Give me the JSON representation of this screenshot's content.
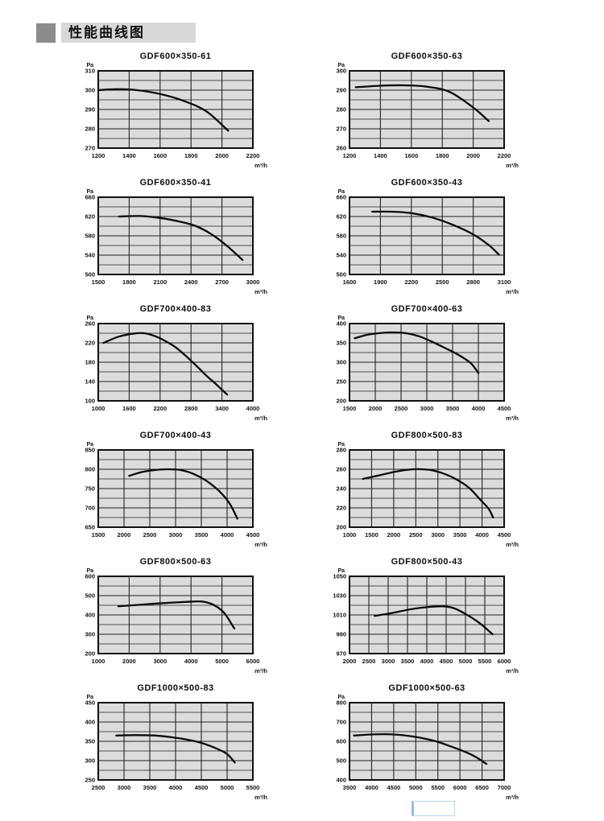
{
  "header": {
    "title": "性能曲线图"
  },
  "x_unit": "m³/h",
  "y_unit": "Pa",
  "colors": {
    "plot_background": "#dcdcdc",
    "gridline": "#222222",
    "border": "#111111",
    "curve": "#0a0a0a",
    "banner": "#d8d8d8",
    "bullet": "#8c8c8c"
  },
  "chart_data": [
    {
      "type": "line",
      "title": "GDF600×350-61",
      "y_unit": "Pa",
      "x_unit": "m³/h",
      "grid": true,
      "legend": false,
      "x_ticks": [
        1200,
        1400,
        1600,
        1800,
        2000,
        2200
      ],
      "y_ticks": [
        270,
        280,
        290,
        300,
        310
      ],
      "x_range": [
        1200,
        2200
      ],
      "y_range": [
        270,
        310
      ],
      "points": [
        [
          1200,
          300
        ],
        [
          1320,
          300.5
        ],
        [
          1450,
          300
        ],
        [
          1600,
          298
        ],
        [
          1750,
          294.5
        ],
        [
          1900,
          289
        ],
        [
          2040,
          279
        ]
      ]
    },
    {
      "type": "line",
      "title": "GDF600×350-63",
      "y_unit": "Pa",
      "x_unit": "m³/h",
      "grid": true,
      "legend": false,
      "x_ticks": [
        1200,
        1400,
        1600,
        1800,
        2000,
        2200
      ],
      "y_ticks": [
        260,
        270,
        280,
        290,
        300
      ],
      "x_range": [
        1200,
        2200
      ],
      "y_range": [
        260,
        300
      ],
      "points": [
        [
          1240,
          291.5
        ],
        [
          1400,
          292.3
        ],
        [
          1550,
          292.5
        ],
        [
          1700,
          291.8
        ],
        [
          1850,
          289
        ],
        [
          2000,
          281
        ],
        [
          2100,
          274
        ]
      ]
    },
    {
      "type": "line",
      "title": "GDF600×350-41",
      "y_unit": "Pa",
      "x_unit": "m³/h",
      "grid": true,
      "legend": false,
      "x_ticks": [
        1500,
        1800,
        2100,
        2400,
        2700,
        3000
      ],
      "y_ticks": [
        500,
        540,
        580,
        620,
        660
      ],
      "x_range": [
        1500,
        3000
      ],
      "y_range": [
        500,
        660
      ],
      "points": [
        [
          1700,
          620
        ],
        [
          1900,
          621
        ],
        [
          2100,
          617
        ],
        [
          2300,
          609
        ],
        [
          2450,
          600
        ],
        [
          2600,
          583
        ],
        [
          2750,
          559
        ],
        [
          2900,
          530
        ]
      ]
    },
    {
      "type": "line",
      "title": "GDF600×350-43",
      "y_unit": "Pa",
      "x_unit": "m³/h",
      "grid": true,
      "legend": false,
      "x_ticks": [
        1600,
        1900,
        2200,
        2500,
        2800,
        3100
      ],
      "y_ticks": [
        500,
        540,
        580,
        620,
        660
      ],
      "x_range": [
        1600,
        3100
      ],
      "y_range": [
        500,
        660
      ],
      "points": [
        [
          1820,
          630
        ],
        [
          2000,
          630
        ],
        [
          2200,
          627
        ],
        [
          2400,
          618
        ],
        [
          2600,
          603
        ],
        [
          2800,
          583
        ],
        [
          2950,
          561
        ],
        [
          3050,
          541
        ]
      ]
    },
    {
      "type": "line",
      "title": "GDF700×400-83",
      "y_unit": "Pa",
      "x_unit": "m³/h",
      "grid": true,
      "legend": false,
      "x_ticks": [
        1000,
        1600,
        2200,
        2800,
        3400,
        4000
      ],
      "y_ticks": [
        100,
        140,
        180,
        220,
        260
      ],
      "x_range": [
        1000,
        4000
      ],
      "y_range": [
        100,
        260
      ],
      "points": [
        [
          1100,
          220
        ],
        [
          1400,
          233
        ],
        [
          1700,
          239.5
        ],
        [
          1900,
          240
        ],
        [
          2100,
          234
        ],
        [
          2300,
          224
        ],
        [
          2500,
          211
        ],
        [
          2700,
          193
        ],
        [
          2900,
          173
        ],
        [
          3100,
          152
        ],
        [
          3300,
          133
        ],
        [
          3500,
          113
        ]
      ]
    },
    {
      "type": "line",
      "title": "GDF700×400-63",
      "y_unit": "Pa",
      "x_unit": "m³/h",
      "grid": true,
      "legend": false,
      "x_ticks": [
        1500,
        2000,
        2500,
        3000,
        3500,
        4000,
        4500
      ],
      "y_ticks": [
        200,
        250,
        300,
        350,
        400
      ],
      "x_range": [
        1500,
        4500
      ],
      "y_range": [
        200,
        400
      ],
      "points": [
        [
          1600,
          362
        ],
        [
          1850,
          371
        ],
        [
          2100,
          375.5
        ],
        [
          2350,
          377
        ],
        [
          2600,
          375
        ],
        [
          2850,
          367
        ],
        [
          3100,
          353
        ],
        [
          3350,
          337
        ],
        [
          3600,
          320
        ],
        [
          3850,
          298
        ],
        [
          4000,
          272
        ]
      ]
    },
    {
      "type": "line",
      "title": "GDF700×400-43",
      "y_unit": "Pa",
      "x_unit": "m³/h",
      "grid": true,
      "legend": false,
      "x_ticks": [
        1500,
        2000,
        2500,
        3000,
        3500,
        4000,
        4500
      ],
      "y_ticks": [
        650,
        700,
        750,
        800,
        850
      ],
      "x_range": [
        1500,
        4500
      ],
      "y_range": [
        650,
        850
      ],
      "points": [
        [
          2100,
          783
        ],
        [
          2350,
          793
        ],
        [
          2600,
          798
        ],
        [
          2850,
          800
        ],
        [
          3100,
          798
        ],
        [
          3350,
          788
        ],
        [
          3600,
          770
        ],
        [
          3850,
          743
        ],
        [
          4050,
          711
        ],
        [
          4200,
          672
        ]
      ]
    },
    {
      "type": "line",
      "title": "GDF800×500-83",
      "y_unit": "Pa",
      "x_unit": "m³/h",
      "grid": true,
      "legend": false,
      "x_ticks": [
        1000,
        1500,
        2000,
        2500,
        3000,
        3500,
        4000,
        4500
      ],
      "y_ticks": [
        200,
        220,
        240,
        260,
        280
      ],
      "x_range": [
        1000,
        4500
      ],
      "y_range": [
        200,
        280
      ],
      "points": [
        [
          1300,
          250
        ],
        [
          1700,
          254
        ],
        [
          2100,
          258
        ],
        [
          2450,
          260
        ],
        [
          2800,
          259.5
        ],
        [
          3100,
          256
        ],
        [
          3400,
          250
        ],
        [
          3700,
          241
        ],
        [
          3950,
          229
        ],
        [
          4150,
          219
        ],
        [
          4250,
          210
        ]
      ]
    },
    {
      "type": "line",
      "title": "GDF800×500-63",
      "y_unit": "Pa",
      "x_unit": "m³/h",
      "grid": true,
      "legend": false,
      "x_ticks": [
        1000,
        2000,
        3000,
        4000,
        5000,
        6000
      ],
      "y_ticks": [
        200,
        300,
        400,
        500,
        600
      ],
      "x_range": [
        1000,
        6000
      ],
      "y_range": [
        200,
        600
      ],
      "points": [
        [
          1650,
          445
        ],
        [
          2200,
          451
        ],
        [
          2800,
          458
        ],
        [
          3400,
          464
        ],
        [
          3900,
          468
        ],
        [
          4300,
          470
        ],
        [
          4600,
          461
        ],
        [
          4850,
          441
        ],
        [
          5100,
          405
        ],
        [
          5400,
          330
        ]
      ]
    },
    {
      "type": "line",
      "title": "GDF800×500-43",
      "y_unit": "Pa",
      "x_unit": "m³/h",
      "grid": true,
      "legend": false,
      "x_ticks": [
        2000,
        2500,
        3000,
        3500,
        4000,
        4500,
        5000,
        5500,
        6000
      ],
      "y_ticks": [
        970,
        990,
        1010,
        1030,
        1050
      ],
      "x_range": [
        2000,
        6000
      ],
      "y_range": [
        970,
        1050
      ],
      "points": [
        [
          2650,
          1009
        ],
        [
          3100,
          1012
        ],
        [
          3600,
          1016
        ],
        [
          4000,
          1018
        ],
        [
          4400,
          1019
        ],
        [
          4700,
          1017
        ],
        [
          5000,
          1011
        ],
        [
          5350,
          1002
        ],
        [
          5700,
          990
        ]
      ]
    },
    {
      "type": "line",
      "title": "GDF1000×500-83",
      "y_unit": "Pa",
      "x_unit": "m³/h",
      "grid": true,
      "legend": false,
      "x_ticks": [
        2500,
        3000,
        3500,
        4000,
        4500,
        5000,
        5500
      ],
      "y_ticks": [
        250,
        300,
        350,
        400,
        450
      ],
      "x_range": [
        2500,
        5500
      ],
      "y_range": [
        250,
        450
      ],
      "points": [
        [
          2850,
          365
        ],
        [
          3200,
          366
        ],
        [
          3600,
          365
        ],
        [
          3900,
          361
        ],
        [
          4200,
          355
        ],
        [
          4500,
          346
        ],
        [
          4800,
          331
        ],
        [
          5000,
          317
        ],
        [
          5150,
          295
        ]
      ]
    },
    {
      "type": "line",
      "title": "GDF1000×500-63",
      "y_unit": "Pa",
      "x_unit": "m³/h",
      "grid": true,
      "legend": false,
      "x_ticks": [
        3500,
        4000,
        4500,
        5000,
        5500,
        6000,
        6500,
        7000
      ],
      "y_ticks": [
        400,
        500,
        600,
        700,
        800
      ],
      "x_range": [
        3500,
        7000
      ],
      "y_range": [
        400,
        800
      ],
      "points": [
        [
          3600,
          630
        ],
        [
          3950,
          635
        ],
        [
          4300,
          637
        ],
        [
          4600,
          634
        ],
        [
          4900,
          626
        ],
        [
          5200,
          614
        ],
        [
          5500,
          597
        ],
        [
          5800,
          573
        ],
        [
          6100,
          547
        ],
        [
          6350,
          520
        ],
        [
          6600,
          483
        ]
      ]
    }
  ]
}
